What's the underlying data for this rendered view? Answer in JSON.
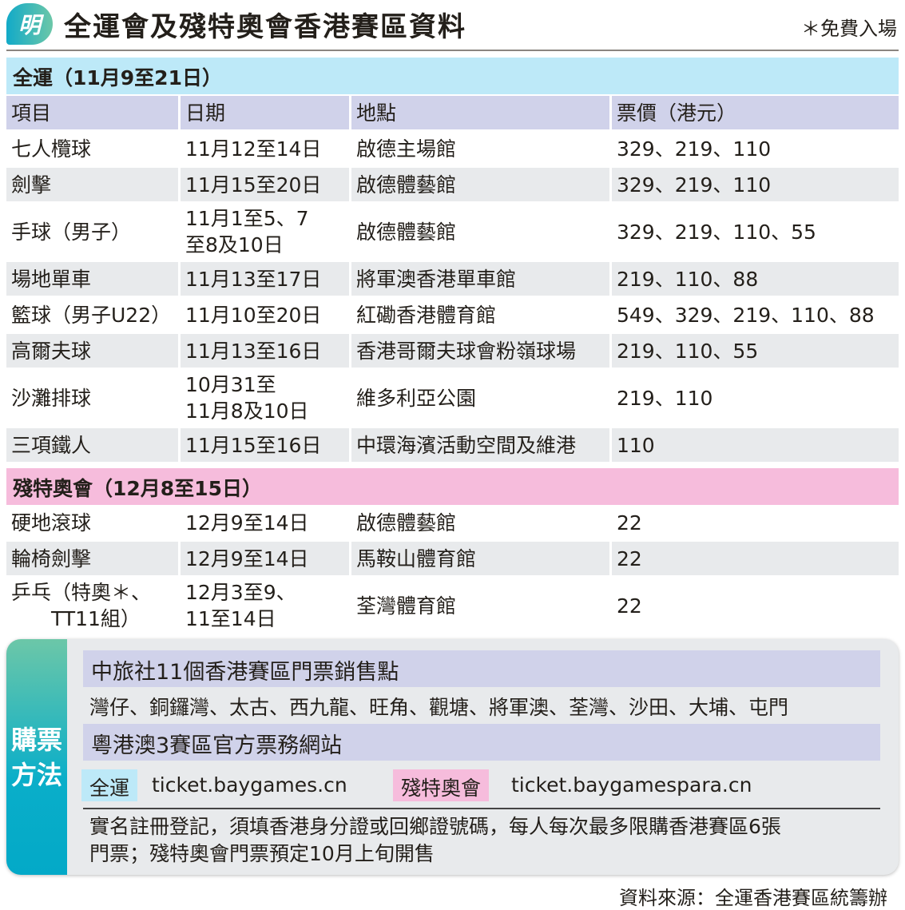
{
  "logo": "明",
  "title": "全運會及殘特奧會香港賽區資料",
  "note": "＊免費入場",
  "colors": {
    "blue_band": "#bde9f8",
    "pink_band": "#f6bcdc",
    "header": "#d0d2ea",
    "teal": "#0aaec9"
  },
  "ng": {
    "band": "全運（11月9至21日）",
    "headers": [
      "項目",
      "日期",
      "地點",
      "票價（港元）"
    ],
    "rows": [
      [
        "七人欖球",
        "11月12至14日",
        "啟德主場館",
        "329、219、110"
      ],
      [
        "劍擊",
        "11月15至20日",
        "啟德體藝館",
        "329、219、110"
      ],
      [
        "手球（男子）",
        "11月1至5、7\n至8及10日",
        "啟德體藝館",
        "329、219、110、55"
      ],
      [
        "場地單車",
        "11月13至17日",
        "將軍澳香港單車館",
        "219、110、88"
      ],
      [
        "籃球（男子U22）",
        "11月10至20日",
        "紅磡香港體育館",
        "549、329、219、110、88"
      ],
      [
        "高爾夫球",
        "11月13至16日",
        "香港哥爾夫球會粉嶺球場",
        "219、110、55"
      ],
      [
        "沙灘排球",
        "10月31至\n11月8及10日",
        "維多利亞公園",
        "219、110"
      ],
      [
        "三項鐵人",
        "11月15至16日",
        "中環海濱活動空間及維港",
        "110"
      ]
    ]
  },
  "para": {
    "band": "殘特奧會（12月8至15日）",
    "rows": [
      [
        "硬地滾球",
        "12月9至14日",
        "啟德體藝館",
        "22"
      ],
      [
        "輪椅劍擊",
        "12月9至14日",
        "馬鞍山體育館",
        "22"
      ],
      [
        "乒乓（特奧＊、\n　　TT11組）",
        "12月3至9、\n11至14日",
        "荃灣體育館",
        "22"
      ]
    ]
  },
  "purchase": {
    "side": "購票\n方法",
    "outlets_title": "中旅社11個香港賽區門票銷售點",
    "outlets": "灣仔、銅鑼灣、太古、西九龍、旺角、觀塘、將軍澳、荃灣、沙田、大埔、屯門",
    "web_title": "粵港澳3賽區官方票務網站",
    "ng_tag": "全運",
    "ng_url": "ticket.baygames.cn",
    "para_tag": "殘特奧會",
    "para_url": "ticket.baygamespara.cn",
    "remark": "實名註冊登記，須填香港身分證或回鄉證號碼，每人每次最多限購香港賽區6張\n門票；殘特奧會門票預定10月上旬開售"
  },
  "source": "資料來源：全運香港賽區統籌辦"
}
